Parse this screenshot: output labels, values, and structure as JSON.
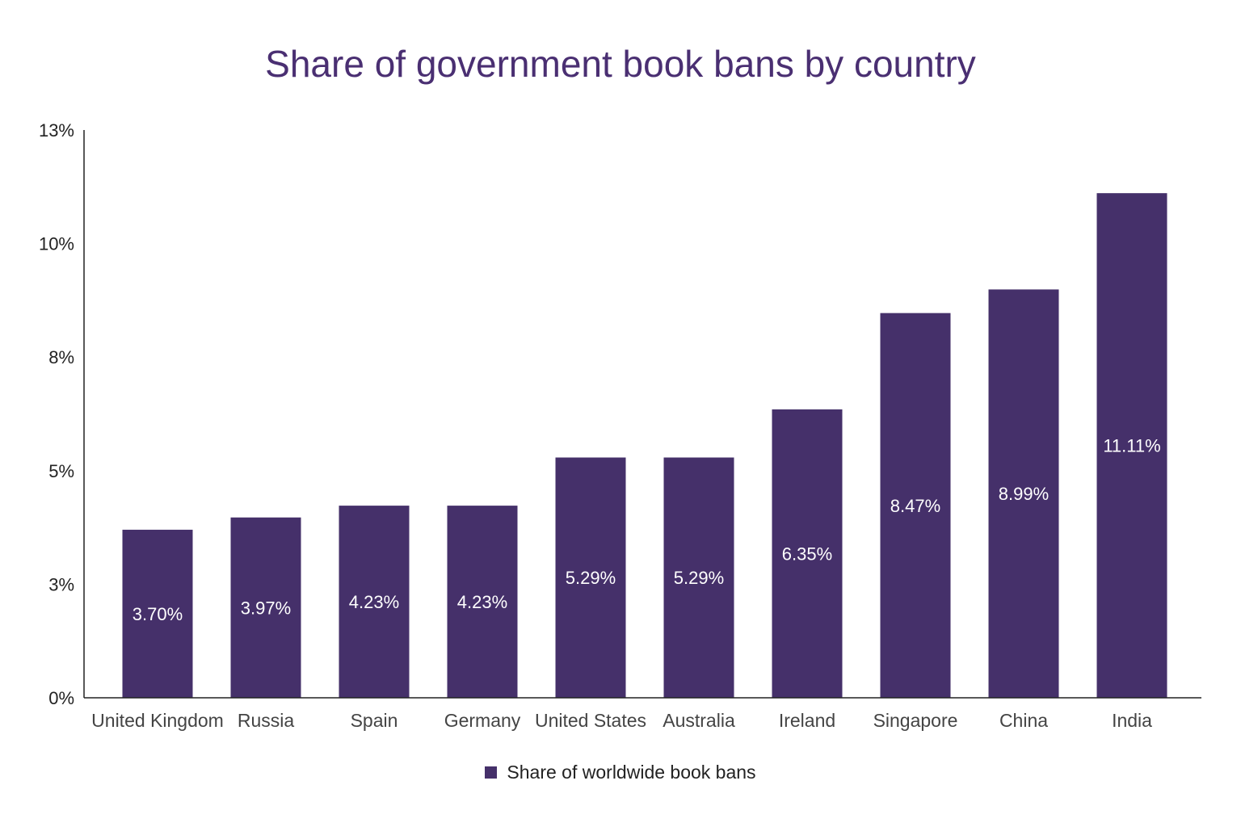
{
  "chart_data": {
    "type": "bar",
    "title": "Share of government book bans by country",
    "xlabel": "",
    "ylabel": "",
    "ylim": [
      0,
      12.5
    ],
    "yticks": [
      0,
      2.5,
      5,
      7.5,
      10,
      12.5
    ],
    "ytick_labels": [
      "0%",
      "3%",
      "5%",
      "8%",
      "10%",
      "13%"
    ],
    "grid": false,
    "categories": [
      "United Kingdom",
      "Russia",
      "Spain",
      "Germany",
      "United States",
      "Australia",
      "Ireland",
      "Singapore",
      "China",
      "India"
    ],
    "series": [
      {
        "name": "Share of worldwide book bans",
        "values": [
          3.7,
          3.97,
          4.23,
          4.23,
          5.29,
          5.29,
          6.35,
          8.47,
          8.99,
          11.11
        ],
        "labels": [
          "3.70%",
          "3.97%",
          "4.23%",
          "4.23%",
          "5.29%",
          "5.29%",
          "6.35%",
          "8.47%",
          "8.99%",
          "11.11%"
        ],
        "color": "#45306a"
      }
    ],
    "legend_position": "bottom",
    "title_color": "#4a2f72"
  }
}
